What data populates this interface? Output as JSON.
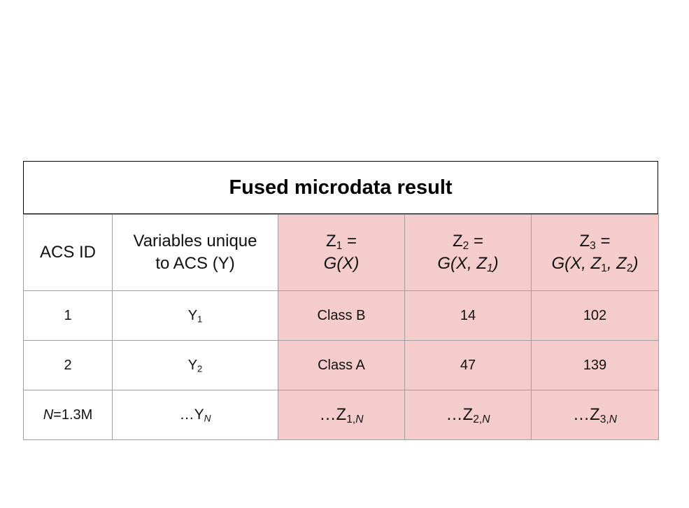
{
  "title": "Fused microdata result",
  "table": {
    "header": [
      [
        "ACS ID"
      ],
      [
        "Variables unique to ACS (Y)"
      ],
      [
        "Z",
        "1",
        " =",
        "G(X)"
      ],
      [
        "Z",
        "2",
        " =",
        "G(X, Z",
        "1",
        ")"
      ],
      [
        "Z",
        "3",
        " =",
        "G(X, Z",
        "1",
        ", Z",
        "2",
        ")"
      ]
    ],
    "rows": [
      [
        [
          "1"
        ],
        [
          "Y",
          "1"
        ],
        [
          "Class B"
        ],
        [
          "14"
        ],
        [
          "102"
        ]
      ],
      [
        [
          "2"
        ],
        [
          "Y",
          "2"
        ],
        [
          "Class A"
        ],
        [
          "47"
        ],
        [
          "139"
        ]
      ],
      [
        [
          "N",
          "=1.3M"
        ],
        [
          "…Y",
          "N"
        ],
        [
          "…Z",
          "1,",
          "N"
        ],
        [
          "…Z",
          "2,",
          "N"
        ],
        [
          "…Z",
          "3,",
          "N"
        ]
      ]
    ]
  }
}
